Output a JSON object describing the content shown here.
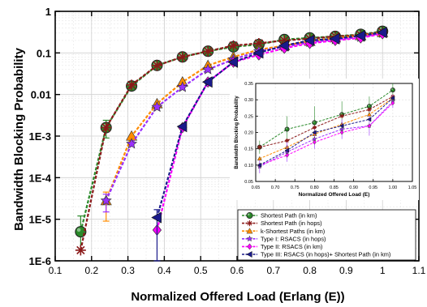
{
  "chart_data": [
    {
      "type": "line",
      "role": "main",
      "xlabel": "Normalized Offered Load (Erlang (E))",
      "ylabel": "Bandwidth Blocking Probability",
      "xlim": [
        0.1,
        1.1
      ],
      "ylim": [
        1e-06,
        1
      ],
      "y_scale": "log",
      "x_ticks": [
        0.1,
        0.2,
        0.3,
        0.4,
        0.5,
        0.6,
        0.7,
        0.8,
        0.9,
        1.0,
        1.1
      ],
      "x_tick_labels": [
        "0.1",
        "0.2",
        "0.3",
        "0.4",
        "0.5",
        "0.6",
        "0.7",
        "0.8",
        "0.9",
        "1",
        "1.1"
      ],
      "y_ticks": [
        1e-06,
        1e-05,
        0.0001,
        0.001,
        0.01,
        0.1,
        1
      ],
      "y_tick_labels": [
        "1E-6",
        "1E-5",
        "1E-4",
        "1E-3",
        "0.01",
        "0.1",
        "1"
      ],
      "grid": true,
      "legend_position": "bottom-right",
      "series": [
        {
          "name": "Shortest Path (in km)",
          "color": "#2a8a2a",
          "marker": "circle",
          "dash": "4,2",
          "x": [
            0.17,
            0.24,
            0.31,
            0.38,
            0.45,
            0.52,
            0.59,
            0.66,
            0.73,
            0.8,
            0.87,
            0.94,
            1.0
          ],
          "y": [
            5e-06,
            0.0016,
            0.016,
            0.05,
            0.08,
            0.11,
            0.14,
            0.16,
            0.21,
            0.23,
            0.25,
            0.28,
            0.33
          ],
          "err_lo": [
            1.8e-06,
            0.0009,
            null,
            null,
            null,
            null,
            null,
            null,
            null,
            null,
            null,
            null,
            null
          ],
          "err_hi": [
            1.2e-05,
            0.0024,
            null,
            null,
            null,
            null,
            null,
            null,
            null,
            null,
            null,
            null,
            null
          ]
        },
        {
          "name": "Shortest Path (in hops)",
          "color": "#8b1a1a",
          "marker": "asterisk",
          "dash": "4,2",
          "x": [
            0.17,
            0.24,
            0.31,
            0.38,
            0.45,
            0.52,
            0.59,
            0.66,
            0.73,
            0.8,
            0.87,
            0.94,
            1.0
          ],
          "y": [
            1.8e-06,
            0.0016,
            0.017,
            0.05,
            0.08,
            0.11,
            0.15,
            0.17,
            0.2,
            0.22,
            0.25,
            0.27,
            0.32
          ]
        },
        {
          "name": "k-Shortest Paths (in km)",
          "color": "#ff8c00",
          "marker": "triangle-up",
          "dash": "4,2",
          "x": [
            0.24,
            0.31,
            0.38,
            0.45,
            0.52,
            0.59,
            0.66,
            0.73,
            0.8,
            0.87,
            0.94,
            1.0
          ],
          "y": [
            2.8e-05,
            0.001,
            0.006,
            0.02,
            0.05,
            0.08,
            0.12,
            0.15,
            0.19,
            0.23,
            0.26,
            0.31
          ],
          "err_lo": [
            9e-06,
            null,
            null,
            null,
            null,
            null,
            null,
            null,
            null,
            null,
            null,
            null
          ],
          "err_hi": [
            4.5e-05,
            null,
            null,
            null,
            null,
            null,
            null,
            null,
            null,
            null,
            null,
            null
          ]
        },
        {
          "name": "Type I: RSACS (in hops)",
          "color": "#9b30ff",
          "marker": "star",
          "dash": "4,2",
          "x": [
            0.24,
            0.31,
            0.38,
            0.45,
            0.52,
            0.59,
            0.66,
            0.73,
            0.8,
            0.87,
            0.94,
            1.0
          ],
          "y": [
            2.8e-05,
            0.00065,
            0.005,
            0.015,
            0.04,
            0.07,
            0.11,
            0.14,
            0.18,
            0.21,
            0.24,
            0.3
          ],
          "err_lo": [
            1.5e-05,
            null,
            null,
            null,
            null,
            null,
            null,
            null,
            null,
            null,
            null,
            null
          ],
          "err_hi": [
            4e-05,
            null,
            null,
            null,
            null,
            null,
            null,
            null,
            null,
            null,
            null,
            null
          ]
        },
        {
          "name": "Type II: RSACS (in km)",
          "color": "#ff00ff",
          "marker": "diamond",
          "dash": "4,2",
          "x": [
            0.38,
            0.45,
            0.52,
            0.59,
            0.66,
            0.73,
            0.8,
            0.87,
            0.94,
            1.0
          ],
          "y": [
            5.5e-06,
            0.0016,
            0.02,
            0.06,
            0.09,
            0.13,
            0.17,
            0.2,
            0.23,
            0.29
          ]
        },
        {
          "name": "Type III: RSACS (in hops)+ Shortest Path (in km)",
          "color": "#1a1a8b",
          "marker": "triangle-left",
          "dash": "4,2",
          "x": [
            0.38,
            0.45,
            0.52,
            0.59,
            0.66,
            0.73,
            0.8,
            0.87,
            0.94,
            1.0
          ],
          "y": [
            1.1e-05,
            0.0017,
            0.02,
            0.06,
            0.1,
            0.15,
            0.2,
            0.22,
            0.26,
            0.31
          ],
          "err_lo": [
            1e-06,
            null,
            null,
            null,
            null,
            null,
            null,
            null,
            null,
            null
          ],
          "err_hi": [
            1.7e-05,
            null,
            null,
            null,
            null,
            null,
            null,
            null,
            null,
            null
          ]
        }
      ]
    },
    {
      "type": "line",
      "role": "inset",
      "xlabel": "Normalized Offered Load (E)",
      "ylabel": "Bandwidth Blocking Probability",
      "xlim": [
        0.65,
        1.05
      ],
      "ylim": [
        0.05,
        0.35
      ],
      "y_scale": "linear",
      "x_ticks": [
        0.65,
        0.7,
        0.75,
        0.8,
        0.85,
        0.9,
        0.95,
        1.0,
        1.05
      ],
      "x_tick_labels": [
        "0.65",
        "0.70",
        "0.75",
        "0.80",
        "0.85",
        "0.90",
        "0.95",
        "1.00",
        "1.05"
      ],
      "y_ticks": [
        0.05,
        0.1,
        0.15,
        0.2,
        0.25,
        0.3,
        0.35
      ],
      "y_tick_labels": [
        "0.05",
        "0.10",
        "0.15",
        "0.20",
        "0.25",
        "0.30",
        "0.35"
      ],
      "grid": true,
      "series": [
        {
          "name": "Shortest Path (in km)",
          "color": "#2a8a2a",
          "marker": "circle",
          "x": [
            0.66,
            0.73,
            0.8,
            0.87,
            0.94,
            1.0
          ],
          "y": [
            0.155,
            0.21,
            0.23,
            0.255,
            0.28,
            0.33
          ],
          "err": [
            0.02,
            0.04,
            0.05,
            0.04,
            0.03,
            0.02
          ]
        },
        {
          "name": "Shortest Path (in hops)",
          "color": "#8b1a1a",
          "marker": "asterisk",
          "x": [
            0.66,
            0.73,
            0.8,
            0.87,
            0.94,
            1.0
          ],
          "y": [
            0.155,
            0.175,
            0.215,
            0.25,
            0.27,
            0.31
          ]
        },
        {
          "name": "k-Shortest Paths (in km)",
          "color": "#ff8c00",
          "marker": "triangle-up",
          "x": [
            0.66,
            0.73,
            0.8,
            0.87,
            0.94,
            1.0
          ],
          "y": [
            0.12,
            0.155,
            0.195,
            0.225,
            0.255,
            0.305
          ]
        },
        {
          "name": "Type I: RSACS (in hops)",
          "color": "#9b30ff",
          "marker": "star",
          "x": [
            0.66,
            0.73,
            0.8,
            0.87,
            0.94,
            1.0
          ],
          "y": [
            0.095,
            0.14,
            0.18,
            0.21,
            0.22,
            0.295
          ],
          "err": [
            0.02,
            0.03,
            0.03,
            0.03,
            0.03,
            0.02
          ]
        },
        {
          "name": "Type II: RSACS (in km)",
          "color": "#ff00ff",
          "marker": "diamond",
          "x": [
            0.66,
            0.73,
            0.8,
            0.87,
            0.94,
            1.0
          ],
          "y": [
            0.1,
            0.13,
            0.17,
            0.2,
            0.22,
            0.29
          ]
        },
        {
          "name": "Type III: RSACS (in hops)+ Shortest Path (in km)",
          "color": "#1a1a8b",
          "marker": "triangle-left",
          "x": [
            0.66,
            0.73,
            0.8,
            0.87,
            0.94,
            1.0
          ],
          "y": [
            0.1,
            0.145,
            0.2,
            0.22,
            0.24,
            0.305
          ]
        }
      ]
    }
  ]
}
